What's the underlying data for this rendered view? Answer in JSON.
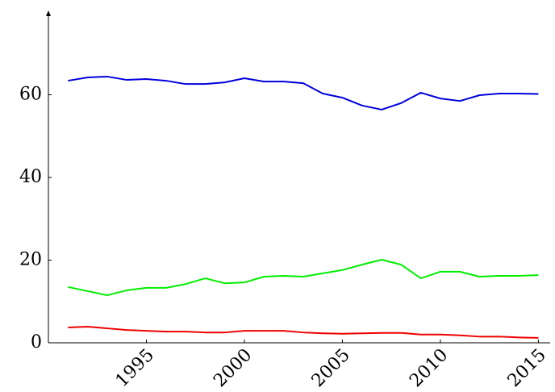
{
  "chart_data": {
    "type": "line",
    "x": [
      1991,
      1992,
      1993,
      1994,
      1995,
      1996,
      1997,
      1998,
      1999,
      2000,
      2001,
      2002,
      2003,
      2004,
      2005,
      2006,
      2007,
      2008,
      2009,
      2010,
      2011,
      2012,
      2013,
      2014,
      2015
    ],
    "series": [
      {
        "color": "#0000dd",
        "values": [
          63.4,
          64.2,
          64.4,
          63.6,
          63.8,
          63.4,
          62.6,
          62.6,
          63.0,
          64.0,
          63.2,
          63.2,
          62.8,
          60.3,
          59.3,
          57.4,
          56.4,
          58.0,
          60.5,
          59.1,
          58.5,
          59.9,
          60.3,
          60.3,
          60.2
        ]
      },
      {
        "color": "#00ee00",
        "values": [
          13.5,
          12.5,
          11.5,
          12.7,
          13.3,
          13.3,
          14.2,
          15.6,
          14.4,
          14.6,
          16.0,
          16.2,
          16.0,
          16.8,
          17.6,
          18.9,
          20.1,
          18.9,
          15.6,
          17.2,
          17.2,
          16.0,
          16.2,
          16.2,
          16.4
        ]
      },
      {
        "color": "#ee0000",
        "values": [
          3.7,
          3.9,
          3.5,
          3.1,
          2.9,
          2.7,
          2.7,
          2.5,
          2.5,
          2.9,
          2.9,
          2.9,
          2.5,
          2.3,
          2.2,
          2.3,
          2.4,
          2.4,
          2.0,
          2.0,
          1.8,
          1.5,
          1.5,
          1.3,
          1.2
        ]
      }
    ],
    "xlim": [
      1990,
      2015.6
    ],
    "xticks": [
      1995,
      2000,
      2005,
      2010,
      2015
    ],
    "ylim": [
      0,
      80
    ],
    "yticks": [
      0,
      20,
      40,
      60
    ]
  }
}
